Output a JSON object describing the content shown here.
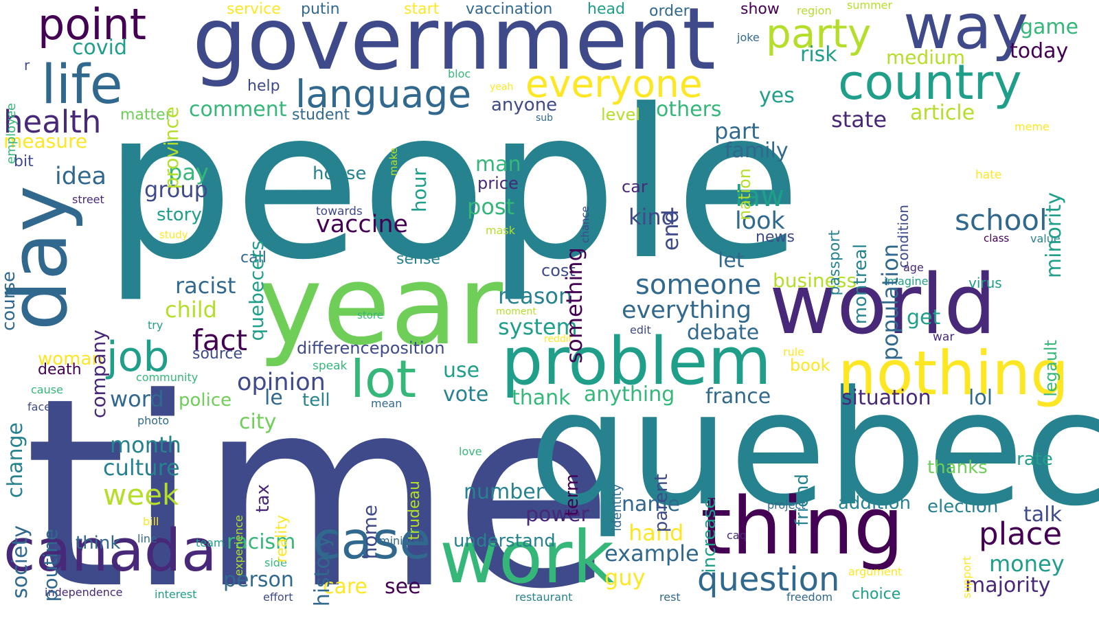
{
  "palette": [
    "#440154",
    "#482878",
    "#3e4a89",
    "#31688e",
    "#26828e",
    "#1f9e89",
    "#35b779",
    "#6ece58",
    "#b5de2b",
    "#fde725"
  ],
  "words": [
    {
      "text": "people",
      "color": "#26828e"
    },
    {
      "text": "time",
      "color": "#3e4a89"
    },
    {
      "text": "government",
      "color": "#3e4a89"
    },
    {
      "text": "quebec",
      "color": "#26828e"
    },
    {
      "text": "year",
      "color": "#6ece58"
    },
    {
      "text": "world",
      "color": "#482878"
    },
    {
      "text": "thing",
      "color": "#440154"
    },
    {
      "text": "problem",
      "color": "#1f9e89"
    },
    {
      "text": "work",
      "color": "#35b779"
    },
    {
      "text": "canada",
      "color": "#482878"
    },
    {
      "text": "day",
      "color": "#31688e"
    },
    {
      "text": "nothing",
      "color": "#fde725"
    },
    {
      "text": "way",
      "color": "#3e4a89"
    },
    {
      "text": "life",
      "color": "#31688e"
    },
    {
      "text": "country",
      "color": "#1f9e89"
    },
    {
      "text": "point",
      "color": "#440154"
    },
    {
      "text": "language",
      "color": "#31688e"
    },
    {
      "text": "everyone",
      "color": "#fde725"
    },
    {
      "text": "party",
      "color": "#b5de2b"
    },
    {
      "text": "case",
      "color": "#31688e"
    },
    {
      "text": "lot",
      "color": "#35b779"
    },
    {
      "text": "job",
      "color": "#1f9e89"
    },
    {
      "text": "question",
      "color": "#31688e"
    },
    {
      "text": "place",
      "color": "#440154"
    },
    {
      "text": "health",
      "color": "#482878"
    },
    {
      "text": "school",
      "color": "#31688e"
    },
    {
      "text": "fact",
      "color": "#440154"
    },
    {
      "text": "someone",
      "color": "#31688e"
    },
    {
      "text": "everything",
      "color": "#31688e"
    },
    {
      "text": "opinion",
      "color": "#3e4a89"
    },
    {
      "text": "law",
      "color": "#1f9e89"
    },
    {
      "text": "look",
      "color": "#31688e"
    },
    {
      "text": "vaccine",
      "color": "#440154"
    },
    {
      "text": "week",
      "color": "#b5de2b"
    },
    {
      "text": "culture",
      "color": "#26828e"
    },
    {
      "text": "month",
      "color": "#26828e"
    },
    {
      "text": "idea",
      "color": "#31688e"
    },
    {
      "text": "racist",
      "color": "#31688e"
    },
    {
      "text": "child",
      "color": "#b5de2b"
    },
    {
      "text": "debate",
      "color": "#31688e"
    },
    {
      "text": "situation",
      "color": "#482878"
    },
    {
      "text": "anything",
      "color": "#35b779"
    },
    {
      "text": "france",
      "color": "#31688e"
    },
    {
      "text": "word",
      "color": "#31688e"
    },
    {
      "text": "reason",
      "color": "#26828e"
    },
    {
      "text": "system",
      "color": "#1f9e89"
    },
    {
      "text": "vote",
      "color": "#26828e"
    },
    {
      "text": "thank",
      "color": "#35b779"
    },
    {
      "text": "post",
      "color": "#35b779"
    },
    {
      "text": "man",
      "color": "#35b779"
    },
    {
      "text": "pay",
      "color": "#35b779"
    },
    {
      "text": "group",
      "color": "#3e4a89"
    },
    {
      "text": "story",
      "color": "#1f9e89"
    },
    {
      "text": "kind",
      "color": "#3e4a89"
    },
    {
      "text": "comment",
      "color": "#35b779"
    },
    {
      "text": "others",
      "color": "#35b779"
    },
    {
      "text": "part",
      "color": "#31688e"
    },
    {
      "text": "family",
      "color": "#31688e"
    },
    {
      "text": "state",
      "color": "#482878"
    },
    {
      "text": "article",
      "color": "#b5de2b"
    },
    {
      "text": "yes",
      "color": "#1f9e89"
    },
    {
      "text": "let",
      "color": "#31688e"
    },
    {
      "text": "business",
      "color": "#b5de2b"
    },
    {
      "text": "get",
      "color": "#1f9e89"
    },
    {
      "text": "measure",
      "color": "#fde725"
    },
    {
      "text": "covid",
      "color": "#1f9e89"
    },
    {
      "text": "risk",
      "color": "#1f9e89"
    },
    {
      "text": "medium",
      "color": "#b5de2b"
    },
    {
      "text": "game",
      "color": "#35b779"
    },
    {
      "text": "today",
      "color": "#440154"
    },
    {
      "text": "anyone",
      "color": "#3e4a89"
    },
    {
      "text": "word_le",
      "color": "#31688e"
    },
    {
      "text": "tell",
      "color": "#26828e"
    },
    {
      "text": "police",
      "color": "#6ece58"
    },
    {
      "text": "woman",
      "color": "#fde725"
    },
    {
      "text": "source",
      "color": "#3e4a89"
    },
    {
      "text": "death",
      "color": "#440154"
    },
    {
      "text": "city",
      "color": "#6ece58"
    },
    {
      "text": "use",
      "color": "#1f9e89"
    },
    {
      "text": "number",
      "color": "#26828e"
    },
    {
      "text": "power",
      "color": "#482878"
    },
    {
      "text": "name",
      "color": "#31688e"
    },
    {
      "text": "hand",
      "color": "#fde725"
    },
    {
      "text": "example",
      "color": "#31688e"
    },
    {
      "text": "guy",
      "color": "#fde725"
    },
    {
      "text": "money",
      "color": "#1f9e89"
    },
    {
      "text": "majority",
      "color": "#482878"
    },
    {
      "text": "talk",
      "color": "#3e4a89"
    },
    {
      "text": "addition",
      "color": "#26828e"
    },
    {
      "text": "election",
      "color": "#26828e"
    },
    {
      "text": "thanks",
      "color": "#6ece58"
    },
    {
      "text": "rate",
      "color": "#1f9e89"
    },
    {
      "text": "lol",
      "color": "#31688e"
    },
    {
      "text": "see",
      "color": "#440154"
    },
    {
      "text": "care",
      "color": "#fde725"
    },
    {
      "text": "person",
      "color": "#31688e"
    },
    {
      "text": "racism",
      "color": "#35b779"
    },
    {
      "text": "understand",
      "color": "#26828e"
    },
    {
      "text": "think",
      "color": "#31688e"
    },
    {
      "text": "help",
      "color": "#3e4a89"
    },
    {
      "text": "student",
      "color": "#31688e"
    },
    {
      "text": "matter",
      "color": "#6ece58"
    },
    {
      "text": "bit",
      "color": "#3e4a89"
    },
    {
      "text": "call",
      "color": "#31688e"
    },
    {
      "text": "sense",
      "color": "#26828e"
    },
    {
      "text": "house",
      "color": "#26828e"
    },
    {
      "text": "price",
      "color": "#482878"
    },
    {
      "text": "cost",
      "color": "#3e4a89"
    },
    {
      "text": "car",
      "color": "#482878"
    },
    {
      "text": "news",
      "color": "#3e4a89"
    },
    {
      "text": "level",
      "color": "#b5de2b"
    },
    {
      "text": "book",
      "color": "#fde725"
    },
    {
      "text": "differenceposition",
      "color": "#3e4a89"
    },
    {
      "text": "service",
      "color": "#fde725"
    },
    {
      "text": "putin",
      "color": "#31688e"
    },
    {
      "text": "start",
      "color": "#fde725"
    },
    {
      "text": "vaccination",
      "color": "#31688e"
    },
    {
      "text": "head",
      "color": "#1f9e89"
    },
    {
      "text": "order",
      "color": "#31688e"
    },
    {
      "text": "show",
      "color": "#440154"
    },
    {
      "text": "region",
      "color": "#b5de2b"
    },
    {
      "text": "summer",
      "color": "#b5de2b"
    },
    {
      "text": "joke",
      "color": "#31688e"
    },
    {
      "text": "bloc",
      "color": "#35b779"
    },
    {
      "text": "yeah",
      "color": "#fde725"
    },
    {
      "text": "sub",
      "color": "#31688e"
    },
    {
      "text": "meme",
      "color": "#fde725"
    },
    {
      "text": "hate",
      "color": "#fde725"
    },
    {
      "text": "class",
      "color": "#440154"
    },
    {
      "text": "value",
      "color": "#26828e"
    },
    {
      "text": "age",
      "color": "#482878"
    },
    {
      "text": "imagine",
      "color": "#1f9e89"
    },
    {
      "text": "virus",
      "color": "#1f9e89"
    },
    {
      "text": "war",
      "color": "#482878"
    },
    {
      "text": "rule",
      "color": "#fde725"
    },
    {
      "text": "edit",
      "color": "#3e4a89"
    },
    {
      "text": "reddit",
      "color": "#fde725"
    },
    {
      "text": "moment",
      "color": "#b5de2b"
    },
    {
      "text": "try",
      "color": "#1f9e89"
    },
    {
      "text": "store",
      "color": "#35b779"
    },
    {
      "text": "towards",
      "color": "#3e4a89"
    },
    {
      "text": "mask",
      "color": "#b5de2b"
    },
    {
      "text": "street",
      "color": "#482878"
    },
    {
      "text": "study",
      "color": "#fde725"
    },
    {
      "text": "speak",
      "color": "#35b779"
    },
    {
      "text": "community",
      "color": "#35b779"
    },
    {
      "text": "cause",
      "color": "#35b779"
    },
    {
      "text": "face",
      "color": "#3e4a89"
    },
    {
      "text": "mean",
      "color": "#31688e"
    },
    {
      "text": "photo",
      "color": "#31688e"
    },
    {
      "text": "love",
      "color": "#35b779"
    },
    {
      "text": "project",
      "color": "#31688e"
    },
    {
      "text": "caq",
      "color": "#482878"
    },
    {
      "text": "argument",
      "color": "#fde725"
    },
    {
      "text": "choice",
      "color": "#1f9e89"
    },
    {
      "text": "freedom",
      "color": "#31688e"
    },
    {
      "text": "rest",
      "color": "#31688e"
    },
    {
      "text": "restaurant",
      "color": "#26828e"
    },
    {
      "text": "effort",
      "color": "#3e4a89"
    },
    {
      "text": "interest",
      "color": "#1f9e89"
    },
    {
      "text": "independence",
      "color": "#482878"
    },
    {
      "text": "team",
      "color": "#1f9e89"
    },
    {
      "text": "line",
      "color": "#31688e"
    },
    {
      "text": "bill",
      "color": "#fde725"
    },
    {
      "text": "minister",
      "color": "#31688e"
    },
    {
      "text": "side",
      "color": "#35b779"
    },
    {
      "text": "employee",
      "color": "#35b779"
    },
    {
      "text": "r",
      "color": "#3e4a89"
    },
    {
      "text": "province",
      "color": "#b5de2b"
    },
    {
      "text": "course",
      "color": "#31688e"
    },
    {
      "text": "company",
      "color": "#482878"
    },
    {
      "text": "quebecers",
      "color": "#1f9e89"
    },
    {
      "text": "change",
      "color": "#26828e"
    },
    {
      "text": "society",
      "color": "#31688e"
    },
    {
      "text": "poutine",
      "color": "#31688e"
    },
    {
      "text": "history",
      "color": "#31688e"
    },
    {
      "text": "home",
      "color": "#3e4a89"
    },
    {
      "text": "tax",
      "color": "#482878"
    },
    {
      "text": "reality",
      "color": "#fde725"
    },
    {
      "text": "experience",
      "color": "#b5de2b"
    },
    {
      "text": "trudeau",
      "color": "#b5de2b"
    },
    {
      "text": "hour",
      "color": "#1f9e89"
    },
    {
      "text": "something",
      "color": "#440154"
    },
    {
      "text": "end",
      "color": "#3e4a89"
    },
    {
      "text": "make",
      "color": "#b5de2b"
    },
    {
      "text": "chance",
      "color": "#3e4a89"
    },
    {
      "text": "passport",
      "color": "#26828e"
    },
    {
      "text": "montreal",
      "color": "#26828e"
    },
    {
      "text": "population",
      "color": "#31688e"
    },
    {
      "text": "condition",
      "color": "#3e4a89"
    },
    {
      "text": "minority",
      "color": "#1f9e89"
    },
    {
      "text": "legault",
      "color": "#35b779"
    },
    {
      "text": "nation",
      "color": "#b5de2b"
    },
    {
      "text": "parent",
      "color": "#3e4a89"
    },
    {
      "text": "term",
      "color": "#440154"
    },
    {
      "text": "identity",
      "color": "#31688e"
    },
    {
      "text": "increase",
      "color": "#1f9e89"
    },
    {
      "text": "friend",
      "color": "#26828e"
    },
    {
      "text": "support",
      "color": "#fde725"
    }
  ]
}
